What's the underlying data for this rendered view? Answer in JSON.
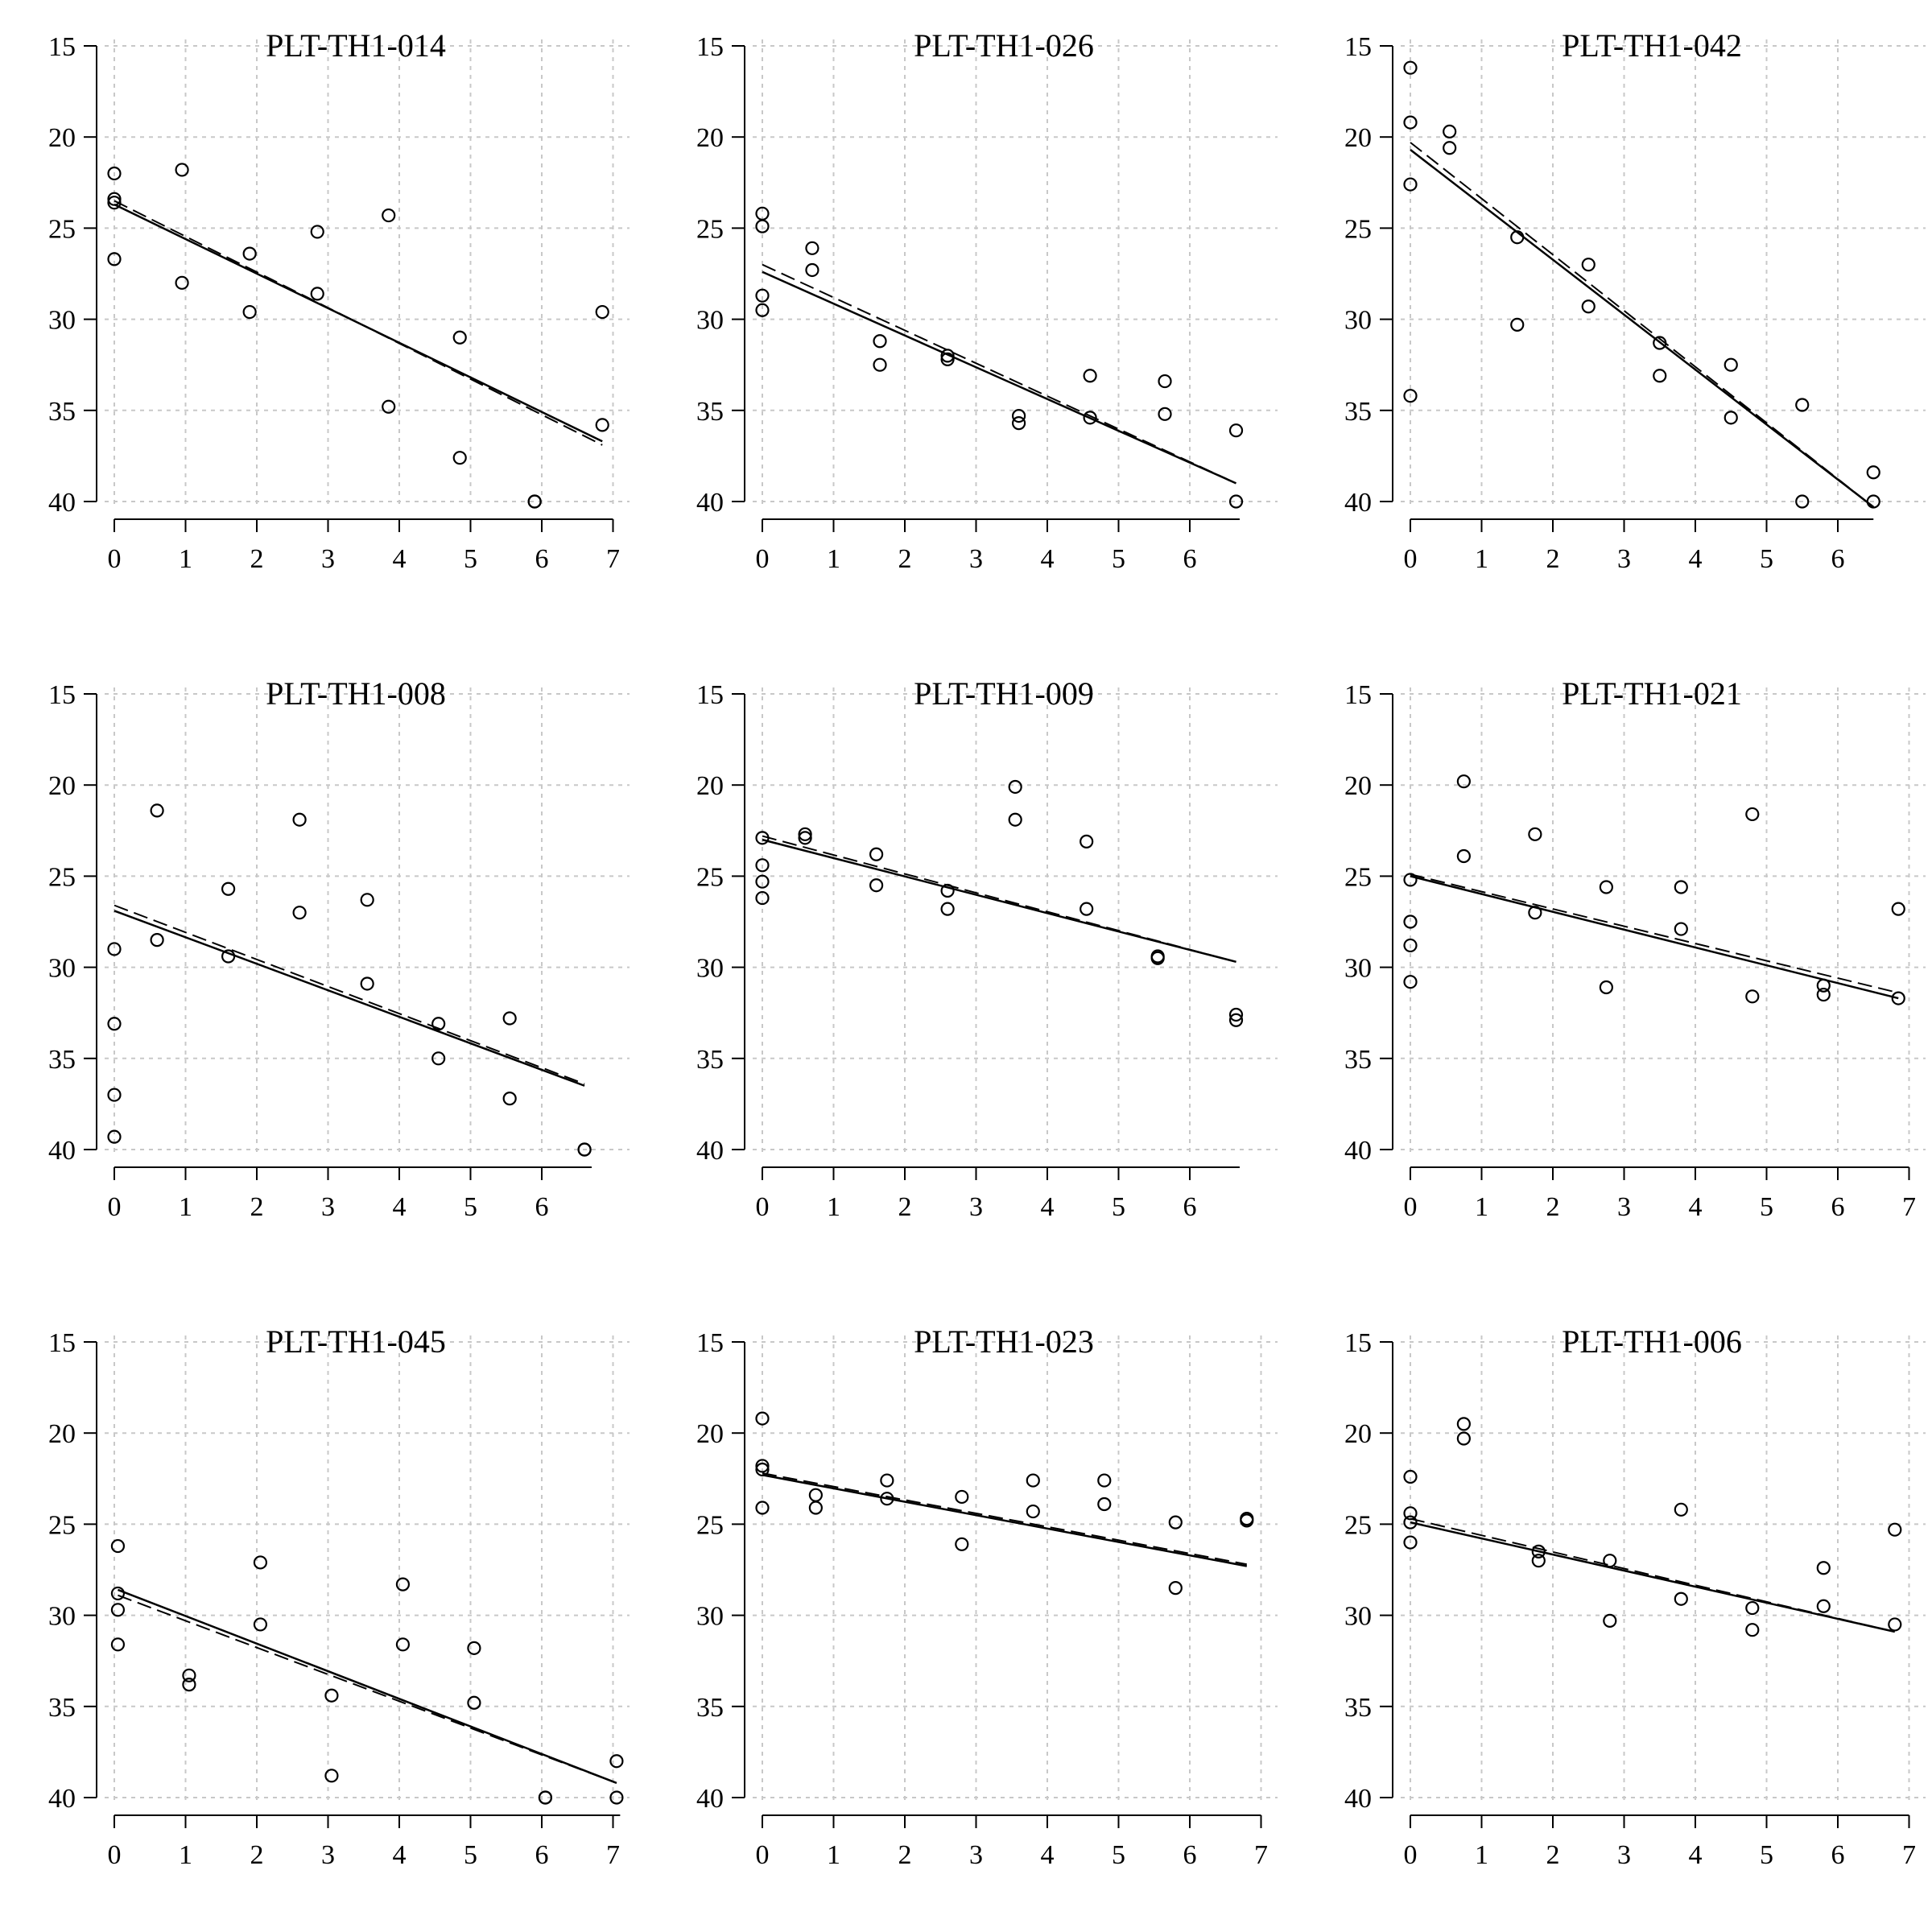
{
  "chart_data": [
    {
      "type": "scatter",
      "title": "PLT-TH1-014",
      "xlim": [
        0,
        7
      ],
      "ylim": [
        15,
        40
      ],
      "y_inverted": true,
      "xticks": [
        0,
        1,
        2,
        3,
        4,
        5,
        6,
        7
      ],
      "yticks": [
        15,
        20,
        25,
        30,
        35,
        40
      ],
      "grid": true,
      "x": [
        0,
        0,
        0,
        0,
        0.95,
        0.95,
        1.9,
        1.9,
        2.85,
        2.85,
        3.85,
        3.85,
        4.85,
        4.85,
        5.9,
        5.9,
        6.85,
        6.85
      ],
      "y": [
        22.0,
        23.4,
        23.6,
        26.7,
        21.8,
        28.0,
        26.4,
        29.6,
        25.2,
        28.6,
        24.3,
        34.8,
        31.0,
        37.6,
        40.0,
        40.0,
        29.6,
        35.8
      ],
      "fit_solid": [
        [
          0,
          23.7
        ],
        [
          6.85,
          36.7
        ]
      ],
      "fit_dashed": [
        [
          0,
          23.5
        ],
        [
          6.85,
          36.9
        ]
      ]
    },
    {
      "type": "scatter",
      "title": "PLT-TH1-026",
      "xlim": [
        0,
        6.7
      ],
      "ylim": [
        15,
        40
      ],
      "y_inverted": true,
      "xticks": [
        0,
        1,
        2,
        3,
        4,
        5,
        6
      ],
      "yticks": [
        15,
        20,
        25,
        30,
        35,
        40
      ],
      "grid": true,
      "x": [
        0,
        0,
        0,
        0,
        0.7,
        0.7,
        1.65,
        1.65,
        2.6,
        2.6,
        3.6,
        3.6,
        4.6,
        4.6,
        5.65,
        5.65,
        6.65,
        6.65
      ],
      "y": [
        24.2,
        24.9,
        28.7,
        29.5,
        26.1,
        27.3,
        31.2,
        32.5,
        32.0,
        32.2,
        35.3,
        35.7,
        33.1,
        35.4,
        33.4,
        35.2,
        36.1,
        40.0
      ],
      "fit_solid": [
        [
          0,
          27.4
        ],
        [
          6.65,
          39.0
        ]
      ],
      "fit_dashed": [
        [
          0,
          27.0
        ],
        [
          6.65,
          39.0
        ]
      ]
    },
    {
      "type": "scatter",
      "title": "PLT-TH1-042",
      "xlim": [
        0,
        6.5
      ],
      "ylim": [
        15,
        40
      ],
      "y_inverted": true,
      "xticks": [
        0,
        1,
        2,
        3,
        4,
        5,
        6
      ],
      "yticks": [
        15,
        20,
        25,
        30,
        35,
        40
      ],
      "grid": true,
      "x": [
        0,
        0,
        0,
        0,
        0.55,
        0.55,
        1.5,
        1.5,
        2.5,
        2.5,
        3.5,
        3.5,
        4.5,
        4.5,
        5.5,
        5.5,
        6.5,
        6.5
      ],
      "y": [
        16.2,
        19.2,
        22.6,
        34.2,
        19.7,
        20.6,
        25.5,
        30.3,
        27.0,
        29.3,
        31.3,
        33.1,
        32.5,
        35.4,
        34.7,
        40.0,
        38.4,
        40.0
      ],
      "fit_solid": [
        [
          0,
          20.7
        ],
        [
          6.5,
          40.3
        ]
      ],
      "fit_dashed": [
        [
          0,
          20.3
        ],
        [
          6.5,
          40.3
        ]
      ]
    },
    {
      "type": "scatter",
      "title": "PLT-TH1-008",
      "xlim": [
        0,
        6.7
      ],
      "ylim": [
        15,
        40
      ],
      "y_inverted": true,
      "xticks": [
        0,
        1,
        2,
        3,
        4,
        5,
        6
      ],
      "yticks": [
        15,
        20,
        25,
        30,
        35,
        40
      ],
      "grid": true,
      "x": [
        0,
        0,
        0,
        0,
        0.6,
        0.6,
        1.6,
        1.6,
        2.6,
        2.6,
        3.55,
        3.55,
        4.55,
        4.55,
        5.55,
        5.55,
        6.6,
        6.6
      ],
      "y": [
        29.0,
        33.1,
        37.0,
        39.3,
        21.4,
        28.5,
        25.7,
        29.4,
        21.9,
        27.0,
        26.3,
        30.9,
        33.1,
        35.0,
        32.8,
        37.2,
        40.0,
        40.0
      ],
      "fit_solid": [
        [
          0,
          26.9
        ],
        [
          6.6,
          36.5
        ]
      ],
      "fit_dashed": [
        [
          0,
          26.6
        ],
        [
          6.6,
          36.4
        ]
      ]
    },
    {
      "type": "scatter",
      "title": "PLT-TH1-009",
      "xlim": [
        0,
        6.7
      ],
      "ylim": [
        15,
        40
      ],
      "y_inverted": true,
      "xticks": [
        0,
        1,
        2,
        3,
        4,
        5,
        6
      ],
      "yticks": [
        15,
        20,
        25,
        30,
        35,
        40
      ],
      "grid": true,
      "x": [
        0,
        0,
        0,
        0,
        0.6,
        0.6,
        1.6,
        1.6,
        2.6,
        2.6,
        3.55,
        3.55,
        4.55,
        4.55,
        5.55,
        5.55,
        6.65,
        6.65
      ],
      "y": [
        22.9,
        24.4,
        25.3,
        26.2,
        22.7,
        22.9,
        23.8,
        25.5,
        25.8,
        26.8,
        20.1,
        21.9,
        23.1,
        26.8,
        29.4,
        29.5,
        32.6,
        32.9
      ],
      "fit_solid": [
        [
          0,
          23.0
        ],
        [
          6.65,
          29.7
        ]
      ],
      "fit_dashed": [
        [
          0,
          22.8
        ],
        [
          6.65,
          29.7
        ]
      ]
    },
    {
      "type": "scatter",
      "title": "PLT-TH1-021",
      "xlim": [
        0,
        7
      ],
      "ylim": [
        15,
        40
      ],
      "y_inverted": true,
      "xticks": [
        0,
        1,
        2,
        3,
        4,
        5,
        6,
        7
      ],
      "yticks": [
        15,
        20,
        25,
        30,
        35,
        40
      ],
      "grid": true,
      "x": [
        0,
        0,
        0,
        0,
        0.75,
        0.75,
        1.75,
        1.75,
        2.75,
        2.75,
        3.8,
        3.8,
        4.8,
        4.8,
        5.8,
        5.8,
        6.85,
        6.85
      ],
      "y": [
        25.2,
        27.5,
        28.8,
        30.8,
        19.8,
        23.9,
        22.7,
        27.0,
        25.6,
        31.1,
        25.6,
        27.9,
        21.6,
        31.6,
        31.0,
        31.5,
        26.8,
        31.7
      ],
      "fit_solid": [
        [
          0,
          25.0
        ],
        [
          6.85,
          31.7
        ]
      ],
      "fit_dashed": [
        [
          0,
          24.9
        ],
        [
          6.85,
          31.4
        ]
      ]
    },
    {
      "type": "scatter",
      "title": "PLT-TH1-045",
      "xlim": [
        0,
        7.1
      ],
      "ylim": [
        15,
        40
      ],
      "y_inverted": true,
      "xticks": [
        0,
        1,
        2,
        3,
        4,
        5,
        6,
        7
      ],
      "yticks": [
        15,
        20,
        25,
        30,
        35,
        40
      ],
      "grid": true,
      "x": [
        0.05,
        0.05,
        0.05,
        0.05,
        1.05,
        1.05,
        2.05,
        2.05,
        3.05,
        3.05,
        4.05,
        4.05,
        5.05,
        5.05,
        6.05,
        6.05,
        7.05,
        7.05
      ],
      "y": [
        26.2,
        28.8,
        29.7,
        31.6,
        33.3,
        33.8,
        27.1,
        30.5,
        34.4,
        38.8,
        28.3,
        31.6,
        31.8,
        34.8,
        40.0,
        40.0,
        38.0,
        40.0
      ],
      "fit_solid": [
        [
          0.05,
          28.6
        ],
        [
          7.05,
          39.2
        ]
      ],
      "fit_dashed": [
        [
          0.05,
          28.9
        ],
        [
          7.05,
          39.2
        ]
      ]
    },
    {
      "type": "scatter",
      "title": "PLT-TH1-023",
      "xlim": [
        0,
        6.85
      ],
      "ylim": [
        15,
        40
      ],
      "y_inverted": true,
      "xticks": [
        0,
        1,
        2,
        3,
        4,
        5,
        6,
        7
      ],
      "yticks": [
        15,
        20,
        25,
        30,
        35,
        40
      ],
      "grid": true,
      "x": [
        0,
        0,
        0,
        0,
        0.75,
        0.75,
        1.75,
        1.75,
        2.8,
        2.8,
        3.8,
        3.8,
        4.8,
        4.8,
        5.8,
        5.8,
        6.8,
        6.8
      ],
      "y": [
        19.2,
        21.8,
        22.0,
        24.1,
        23.4,
        24.1,
        22.6,
        23.6,
        23.5,
        26.1,
        22.6,
        24.3,
        22.6,
        23.9,
        24.9,
        28.5,
        24.7,
        24.8
      ],
      "fit_solid": [
        [
          0,
          22.3
        ],
        [
          6.8,
          27.3
        ]
      ],
      "fit_dashed": [
        [
          0,
          22.2
        ],
        [
          6.8,
          27.2
        ]
      ]
    },
    {
      "type": "scatter",
      "title": "PLT-TH1-006",
      "xlim": [
        0,
        6.85
      ],
      "ylim": [
        15,
        40
      ],
      "y_inverted": true,
      "xticks": [
        0,
        1,
        2,
        3,
        4,
        5,
        6,
        7
      ],
      "yticks": [
        15,
        20,
        25,
        30,
        35,
        40
      ],
      "grid": true,
      "x": [
        0,
        0,
        0,
        0,
        0.75,
        0.75,
        1.8,
        1.8,
        2.8,
        2.8,
        3.8,
        3.8,
        4.8,
        4.8,
        5.8,
        5.8,
        6.8,
        6.8
      ],
      "y": [
        22.4,
        24.4,
        24.9,
        26.0,
        19.5,
        20.3,
        26.5,
        27.0,
        27.0,
        30.3,
        24.2,
        29.1,
        29.6,
        30.8,
        27.4,
        29.5,
        25.3,
        30.5
      ],
      "fit_solid": [
        [
          0,
          24.9
        ],
        [
          6.8,
          30.9
        ]
      ],
      "fit_dashed": [
        [
          0,
          24.7
        ],
        [
          6.8,
          30.9
        ]
      ]
    }
  ]
}
